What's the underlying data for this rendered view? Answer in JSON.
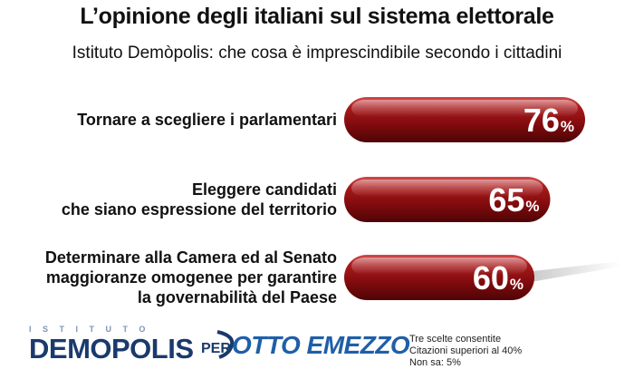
{
  "title": "L’opinione degli italiani sul sistema elettorale",
  "subtitle": "Istituto Demòpolis: che cosa è imprescindibile secondo i cittadini",
  "chart_data": {
    "type": "bar",
    "orientation": "horizontal",
    "categories": [
      [
        "Tornare a scegliere i parlamentari"
      ],
      [
        "Eleggere candidati",
        "che siano espressione del territorio"
      ],
      [
        "Determinare alla Camera ed al Senato",
        "maggioranze omogenee per garantire",
        "la governabilità del Paese"
      ]
    ],
    "values": [
      76,
      65,
      60
    ],
    "value_suffix": "%",
    "bar_color": "#8b0f12"
  },
  "footer": {
    "logo_top": "ISTITUTO",
    "logo_main": "DEMOPOLIS",
    "logo_per": "PER",
    "logo_partner": "OTTO EMEZZO",
    "notes": [
      "Tre scelte consentite",
      "Citazioni superiori al 40%",
      "Non sa: 5%"
    ]
  }
}
